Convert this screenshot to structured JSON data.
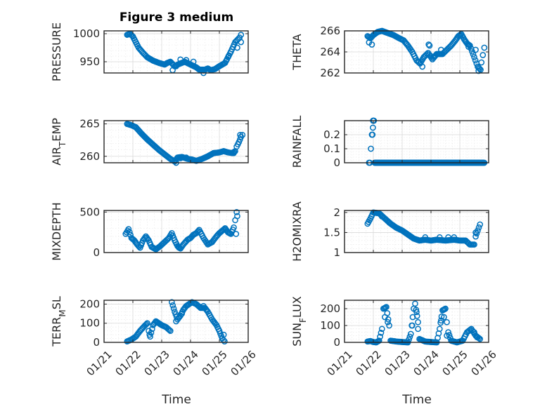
{
  "chart_data": {
    "type": "scatter",
    "title": "Figure 3 medium",
    "x_tick_labels": [
      "01/21",
      "01/22",
      "01/23",
      "01/24",
      "01/25",
      "01/26"
    ],
    "x_range": [
      0,
      5
    ],
    "x_label": "Time",
    "marker_color": "#0072bd",
    "grid": true,
    "panels": [
      {
        "id": "pressure",
        "ylabel": "PRESSURE",
        "ylim": [
          930,
          1005
        ],
        "yticks": [
          950,
          1000
        ],
        "ytick_labels": [
          "950",
          "1000"
        ],
        "keys": [
          [
            0.8,
            998
          ],
          [
            0.9,
            1000
          ],
          [
            1.0,
            995
          ],
          [
            1.1,
            985
          ],
          [
            1.2,
            975
          ],
          [
            1.35,
            966
          ],
          [
            1.5,
            958
          ],
          [
            1.7,
            952
          ],
          [
            1.9,
            948
          ],
          [
            2.1,
            945
          ],
          [
            2.2,
            948
          ],
          [
            2.3,
            950
          ],
          [
            2.45,
            942
          ],
          [
            2.6,
            946
          ],
          [
            2.8,
            950
          ],
          [
            3.0,
            945
          ],
          [
            3.2,
            940
          ],
          [
            3.3,
            936
          ],
          [
            3.5,
            936
          ],
          [
            3.6,
            938
          ],
          [
            3.7,
            935
          ],
          [
            3.85,
            937
          ],
          [
            4.0,
            942
          ],
          [
            4.2,
            948
          ],
          [
            4.4,
            968
          ],
          [
            4.55,
            985
          ],
          [
            4.7,
            993
          ]
        ],
        "extra": [
          [
            2.38,
            935
          ],
          [
            2.5,
            942
          ],
          [
            2.65,
            954
          ],
          [
            2.85,
            953
          ],
          [
            3.1,
            950
          ],
          [
            3.45,
            930
          ],
          [
            4.32,
            960
          ],
          [
            4.62,
            975
          ],
          [
            4.75,
            998
          ],
          [
            4.75,
            985
          ]
        ]
      },
      {
        "id": "theta",
        "ylabel": "THETA",
        "ylim": [
          262,
          266
        ],
        "yticks": [
          262,
          264,
          266
        ],
        "ytick_labels": [
          "262",
          "264",
          "266"
        ],
        "keys": [
          [
            0.8,
            265.5
          ],
          [
            0.9,
            265.3
          ],
          [
            1.0,
            265.6
          ],
          [
            1.15,
            265.9
          ],
          [
            1.3,
            266.0
          ],
          [
            1.5,
            265.8
          ],
          [
            1.7,
            265.6
          ],
          [
            1.9,
            265.3
          ],
          [
            2.05,
            265.1
          ],
          [
            2.2,
            264.6
          ],
          [
            2.35,
            264.0
          ],
          [
            2.5,
            263.2
          ],
          [
            2.62,
            262.9
          ],
          [
            2.75,
            263.5
          ],
          [
            2.9,
            263.9
          ],
          [
            3.05,
            263.3
          ],
          [
            3.2,
            263.8
          ],
          [
            3.4,
            263.8
          ],
          [
            3.55,
            264.2
          ],
          [
            3.7,
            264.6
          ],
          [
            3.85,
            265.1
          ],
          [
            3.95,
            265.5
          ],
          [
            4.05,
            265.7
          ],
          [
            4.15,
            265.2
          ],
          [
            4.25,
            264.8
          ],
          [
            4.35,
            264.6
          ],
          [
            4.5,
            263.5
          ],
          [
            4.62,
            262.6
          ],
          [
            4.72,
            262.3
          ]
        ],
        "extra": [
          [
            0.85,
            264.9
          ],
          [
            0.95,
            264.7
          ],
          [
            2.7,
            262.6
          ],
          [
            2.92,
            264.7
          ],
          [
            2.95,
            264.6
          ],
          [
            3.0,
            263.6
          ],
          [
            3.35,
            264.2
          ],
          [
            4.3,
            264.5
          ],
          [
            4.55,
            264.2
          ],
          [
            4.65,
            262.2
          ],
          [
            4.75,
            263.0
          ],
          [
            4.8,
            263.7
          ],
          [
            4.85,
            264.4
          ]
        ]
      },
      {
        "id": "air_temp",
        "ylabel": "AIR",
        "ylabel_sub": "T",
        "ylabel_rest": "EMP",
        "ylim": [
          259,
          265.5
        ],
        "yticks": [
          260,
          265
        ],
        "ytick_labels": [
          "260",
          "265"
        ],
        "keys": [
          [
            0.8,
            265.0
          ],
          [
            0.95,
            264.8
          ],
          [
            1.1,
            264.5
          ],
          [
            1.3,
            263.5
          ],
          [
            1.5,
            262.6
          ],
          [
            1.7,
            261.8
          ],
          [
            1.9,
            261.0
          ],
          [
            2.1,
            260.3
          ],
          [
            2.3,
            259.6
          ],
          [
            2.45,
            259.2
          ],
          [
            2.55,
            259.8
          ],
          [
            2.7,
            259.9
          ],
          [
            2.9,
            259.6
          ],
          [
            3.05,
            259.5
          ],
          [
            3.2,
            259.3
          ],
          [
            3.4,
            259.6
          ],
          [
            3.6,
            260.0
          ],
          [
            3.8,
            260.5
          ],
          [
            4.0,
            260.6
          ],
          [
            4.15,
            260.8
          ],
          [
            4.3,
            260.6
          ],
          [
            4.45,
            260.5
          ],
          [
            4.55,
            260.8
          ],
          [
            4.6,
            261.5
          ],
          [
            4.68,
            262.2
          ],
          [
            4.75,
            263.0
          ],
          [
            4.8,
            263.3
          ]
        ],
        "extra": [
          [
            2.5,
            259.0
          ],
          [
            2.65,
            259.7
          ],
          [
            2.85,
            259.8
          ],
          [
            3.3,
            259.4
          ],
          [
            4.5,
            260.5
          ],
          [
            4.72,
            263.3
          ]
        ]
      },
      {
        "id": "rainfall",
        "ylabel": "RAINFALL",
        "ylim": [
          0,
          0.3
        ],
        "yticks": [
          0,
          0.1,
          0.2
        ],
        "ytick_labels": [
          "0",
          "0.1",
          "0.2"
        ],
        "keys": [
          [
            0.88,
            0
          ],
          [
            0.95,
            0.2
          ],
          [
            1.02,
            0.3
          ],
          [
            1.05,
            0
          ],
          [
            1.1,
            0
          ],
          [
            4.85,
            0
          ]
        ],
        "extra": [
          [
            0.85,
            0
          ],
          [
            0.97,
            0.2
          ],
          [
            0.99,
            0.3
          ],
          [
            1.0,
            0.3
          ]
        ]
      },
      {
        "id": "mixdepth",
        "ylabel": "MIXDEPTH",
        "ylim": [
          0,
          520
        ],
        "yticks": [
          0,
          500
        ],
        "ytick_labels": [
          "0",
          "500"
        ],
        "keys": [
          [
            0.75,
            230
          ],
          [
            0.85,
            290
          ],
          [
            0.95,
            180
          ],
          [
            1.05,
            150
          ],
          [
            1.15,
            100
          ],
          [
            1.25,
            60
          ],
          [
            1.35,
            150
          ],
          [
            1.45,
            200
          ],
          [
            1.55,
            150
          ],
          [
            1.65,
            70
          ],
          [
            1.8,
            40
          ],
          [
            1.95,
            80
          ],
          [
            2.1,
            130
          ],
          [
            2.25,
            180
          ],
          [
            2.35,
            240
          ],
          [
            2.45,
            150
          ],
          [
            2.55,
            80
          ],
          [
            2.65,
            50
          ],
          [
            2.75,
            100
          ],
          [
            2.9,
            160
          ],
          [
            3.0,
            180
          ],
          [
            3.1,
            220
          ],
          [
            3.2,
            240
          ],
          [
            3.3,
            280
          ],
          [
            3.45,
            180
          ],
          [
            3.6,
            100
          ],
          [
            3.75,
            130
          ],
          [
            3.9,
            200
          ],
          [
            4.0,
            240
          ],
          [
            4.1,
            270
          ],
          [
            4.2,
            300
          ],
          [
            4.3,
            250
          ],
          [
            4.4,
            230
          ],
          [
            4.5,
            310
          ],
          [
            4.55,
            400
          ],
          [
            4.6,
            500
          ]
        ],
        "extra": [
          [
            2.6,
            60
          ],
          [
            4.58,
            230
          ],
          [
            4.62,
            450
          ]
        ]
      },
      {
        "id": "h2omixra",
        "ylabel": "H2OMIXRA",
        "ylim": [
          1,
          2.05
        ],
        "yticks": [
          1,
          1.5,
          2
        ],
        "ytick_labels": [
          "1",
          "1.5",
          "2"
        ],
        "keys": [
          [
            0.8,
            1.72
          ],
          [
            0.9,
            1.85
          ],
          [
            1.0,
            2.0
          ],
          [
            1.2,
            1.98
          ],
          [
            1.4,
            1.85
          ],
          [
            1.6,
            1.72
          ],
          [
            1.8,
            1.62
          ],
          [
            2.0,
            1.55
          ],
          [
            2.2,
            1.45
          ],
          [
            2.4,
            1.35
          ],
          [
            2.6,
            1.3
          ],
          [
            2.8,
            1.32
          ],
          [
            3.0,
            1.3
          ],
          [
            3.2,
            1.32
          ],
          [
            3.5,
            1.3
          ],
          [
            3.8,
            1.32
          ],
          [
            4.0,
            1.3
          ],
          [
            4.2,
            1.3
          ],
          [
            4.35,
            1.2
          ],
          [
            4.5,
            1.2
          ],
          [
            4.55,
            1.4
          ],
          [
            4.62,
            1.55
          ],
          [
            4.7,
            1.7
          ]
        ],
        "extra": [
          [
            1.3,
            1.9
          ],
          [
            1.55,
            1.75
          ],
          [
            2.8,
            1.38
          ],
          [
            3.3,
            1.38
          ],
          [
            3.6,
            1.38
          ],
          [
            3.8,
            1.38
          ],
          [
            4.55,
            1.5
          ]
        ]
      },
      {
        "id": "terr_msl",
        "ylabel": "TERR",
        "ylabel_sub": "M",
        "ylabel_rest": "SL",
        "ylim": [
          0,
          220
        ],
        "yticks": [
          0,
          100,
          200
        ],
        "ytick_labels": [
          "0",
          "100",
          "200"
        ],
        "keys": [
          [
            0.8,
            5
          ],
          [
            0.95,
            15
          ],
          [
            1.1,
            30
          ],
          [
            1.25,
            60
          ],
          [
            1.4,
            85
          ],
          [
            1.5,
            100
          ],
          [
            1.55,
            60
          ],
          [
            1.6,
            30
          ],
          [
            1.7,
            90
          ],
          [
            1.8,
            110
          ],
          [
            1.9,
            100
          ],
          [
            2.0,
            90
          ],
          [
            2.15,
            80
          ],
          [
            2.3,
            60
          ],
          [
            2.35,
            210
          ],
          [
            2.45,
            160
          ],
          [
            2.55,
            120
          ],
          [
            2.65,
            140
          ],
          [
            2.75,
            170
          ],
          [
            2.85,
            190
          ],
          [
            2.95,
            200
          ],
          [
            3.05,
            210
          ],
          [
            3.2,
            200
          ],
          [
            3.35,
            180
          ],
          [
            3.5,
            180
          ],
          [
            3.6,
            160
          ],
          [
            3.75,
            120
          ],
          [
            3.9,
            90
          ],
          [
            4.0,
            60
          ],
          [
            4.1,
            20
          ],
          [
            4.18,
            5
          ]
        ],
        "extra": [
          [
            1.58,
            40
          ],
          [
            2.5,
            110
          ],
          [
            2.7,
            150
          ],
          [
            3.45,
            190
          ],
          [
            4.15,
            40
          ]
        ]
      },
      {
        "id": "sun_flux",
        "ylabel": "SUN",
        "ylabel_sub": "F",
        "ylabel_rest": "LUX",
        "ylim": [
          0,
          250
        ],
        "yticks": [
          0,
          100,
          200
        ],
        "ytick_labels": [
          "0",
          "100",
          "200"
        ],
        "keys": [
          [
            0.8,
            5
          ],
          [
            0.9,
            8
          ],
          [
            1.0,
            2
          ],
          [
            1.1,
            0
          ],
          [
            1.2,
            10
          ],
          [
            1.3,
            80
          ],
          [
            1.35,
            200
          ],
          [
            1.45,
            210
          ],
          [
            1.55,
            100
          ],
          [
            1.6,
            10
          ],
          [
            1.8,
            5
          ],
          [
            2.0,
            2
          ],
          [
            2.2,
            0
          ],
          [
            2.3,
            50
          ],
          [
            2.4,
            200
          ],
          [
            2.45,
            230
          ],
          [
            2.55,
            120
          ],
          [
            2.6,
            20
          ],
          [
            2.8,
            5
          ],
          [
            3.0,
            2
          ],
          [
            3.2,
            0
          ],
          [
            3.3,
            80
          ],
          [
            3.4,
            190
          ],
          [
            3.5,
            200
          ],
          [
            3.55,
            120
          ],
          [
            3.6,
            60
          ],
          [
            3.7,
            10
          ],
          [
            3.9,
            0
          ],
          [
            4.1,
            10
          ],
          [
            4.25,
            60
          ],
          [
            4.4,
            80
          ],
          [
            4.55,
            40
          ],
          [
            4.7,
            20
          ]
        ],
        "extra": [
          [
            1.4,
            150
          ],
          [
            1.5,
            120
          ],
          [
            2.5,
            180
          ],
          [
            2.35,
            100
          ],
          [
            2.55,
            80
          ],
          [
            3.35,
            130
          ],
          [
            3.45,
            150
          ],
          [
            3.55,
            40
          ],
          [
            4.5,
            60
          ],
          [
            4.6,
            30
          ]
        ]
      }
    ]
  }
}
